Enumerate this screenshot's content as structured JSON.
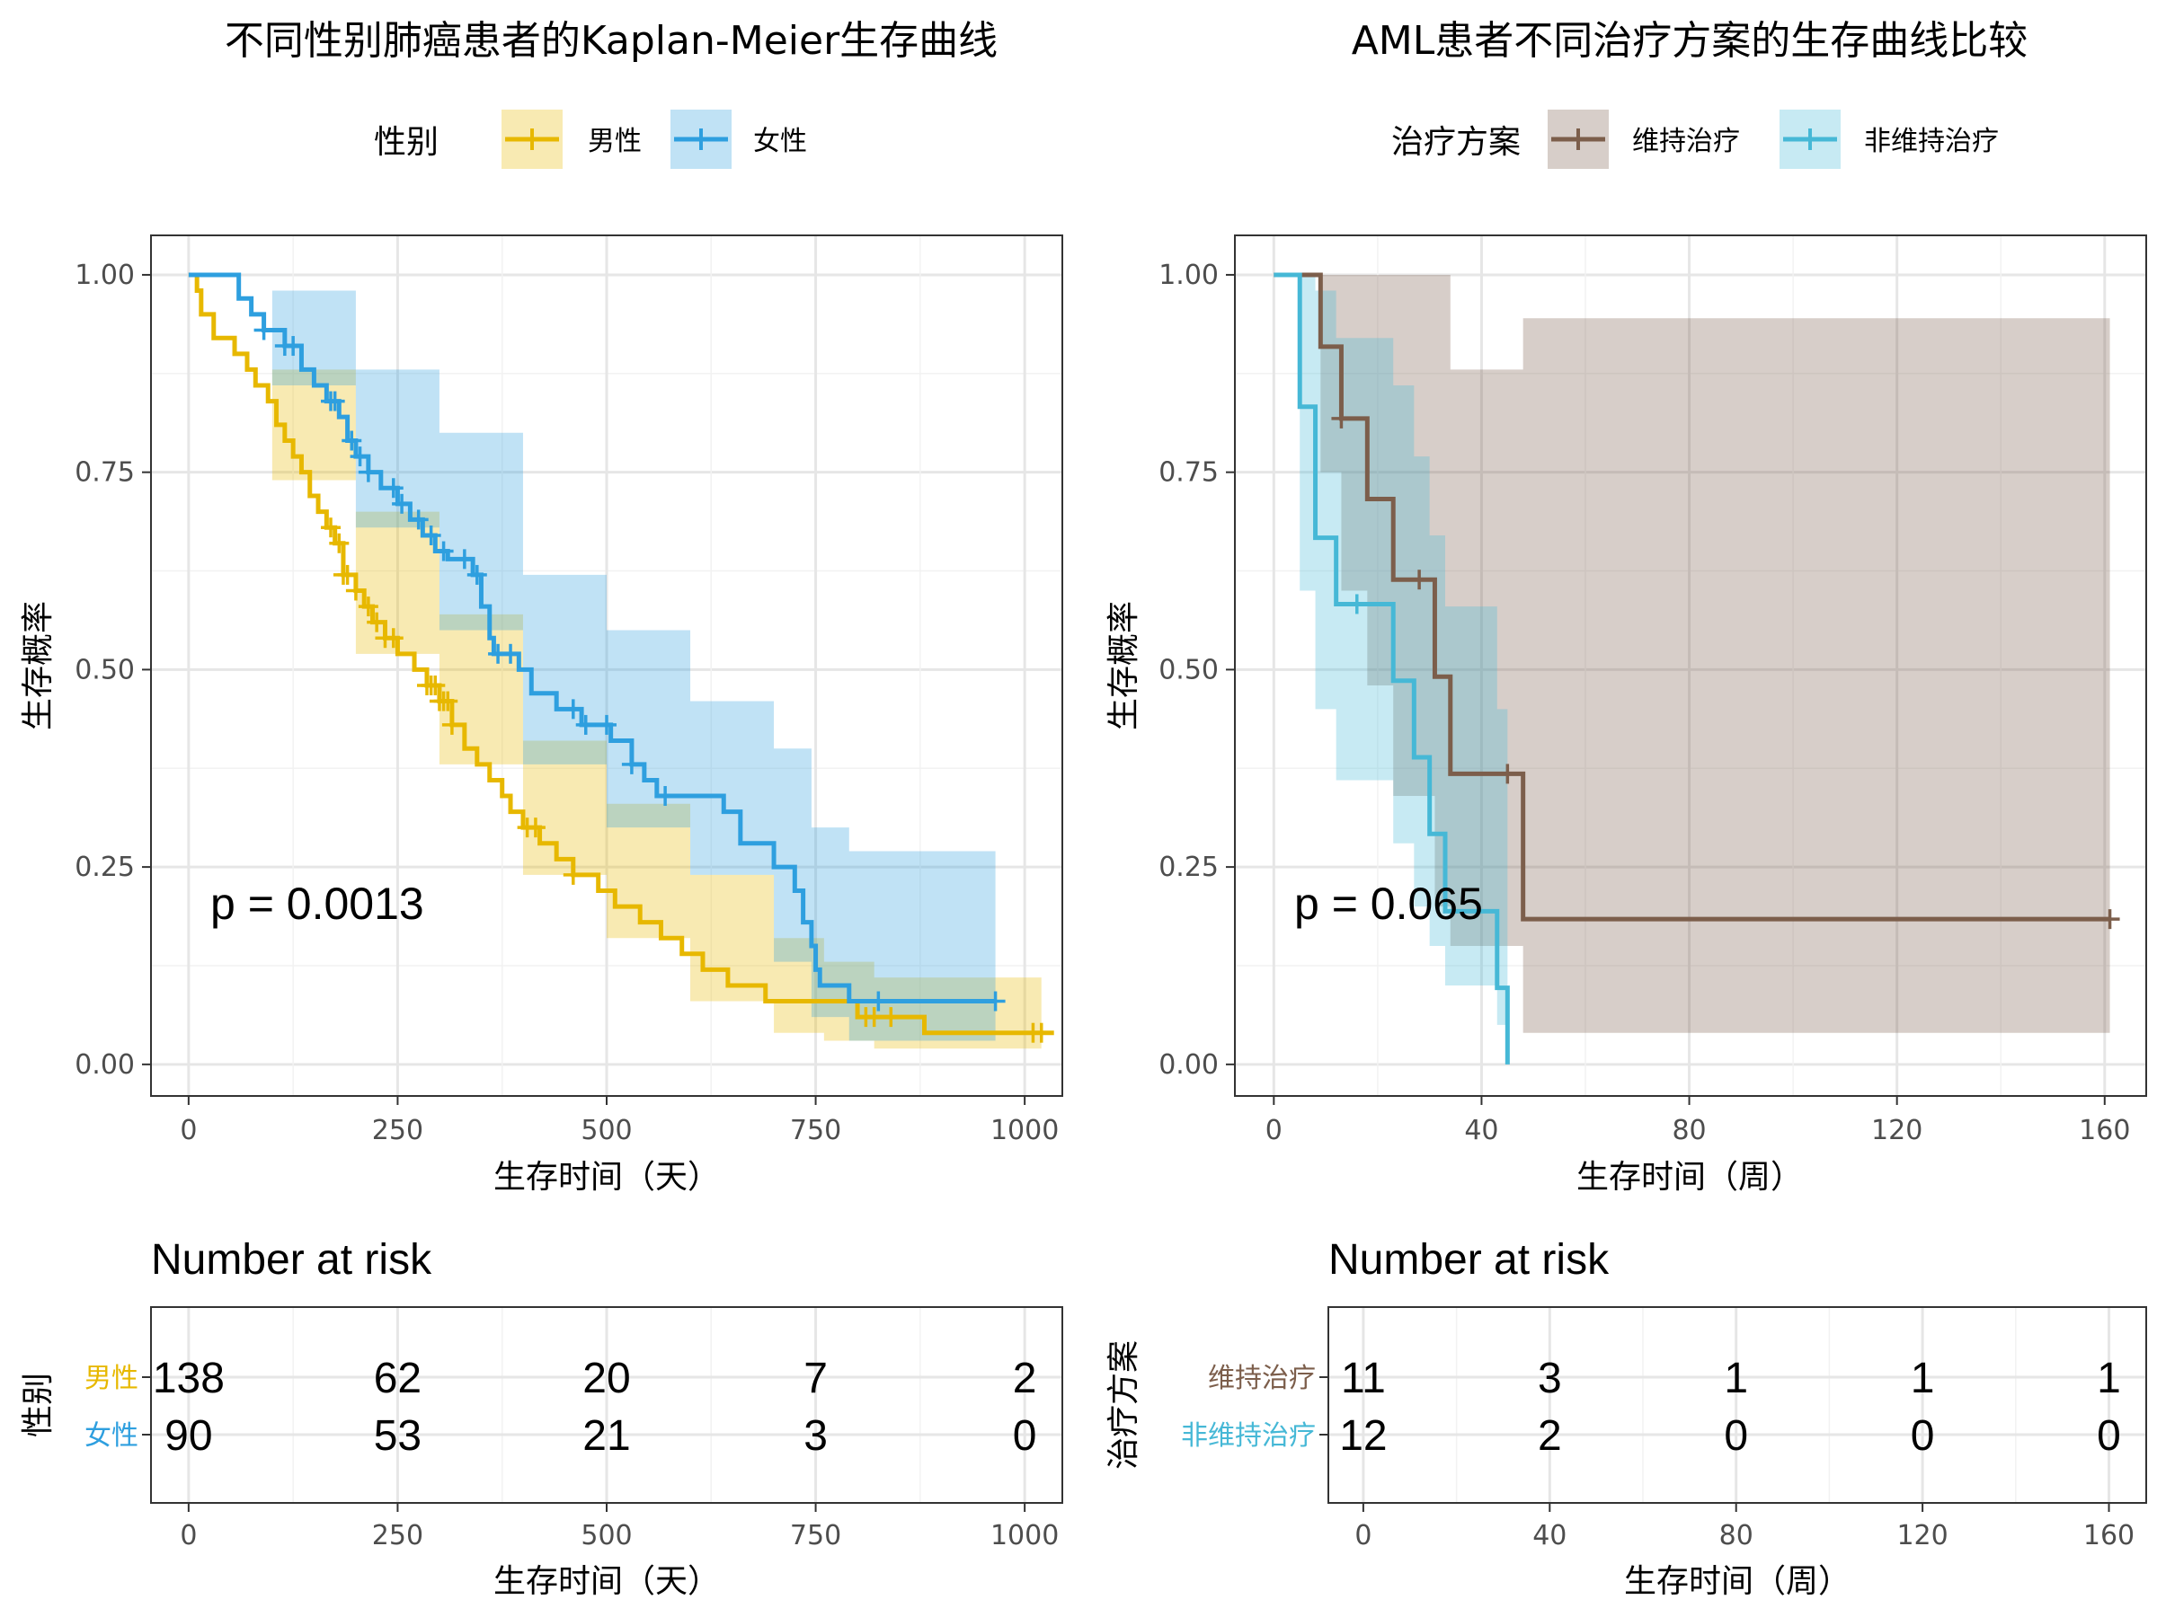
{
  "chart_data": [
    {
      "type": "line",
      "subtype": "kaplan-meier",
      "title": "不同性别肺癌患者的Kaplan-Meier生存曲线",
      "xlabel": "生存时间（天）",
      "ylabel": "生存概率",
      "xlim": [
        -45,
        1045
      ],
      "ylim": [
        -0.04,
        1.05
      ],
      "xticks": [
        0,
        250,
        500,
        750,
        1000
      ],
      "yticks": [
        0.0,
        0.25,
        0.5,
        0.75,
        1.0
      ],
      "ytick_labels": [
        "0.00",
        "0.25",
        "0.50",
        "0.75",
        "1.00"
      ],
      "legend_title": "性别",
      "legend_position": "top",
      "grid": true,
      "annotation": "p = 0.0013",
      "series": [
        {
          "name": "男性",
          "color": "#E7B800",
          "steps": [
            [
              0,
              1.0
            ],
            [
              10,
              0.98
            ],
            [
              15,
              0.95
            ],
            [
              30,
              0.92
            ],
            [
              55,
              0.9
            ],
            [
              70,
              0.88
            ],
            [
              80,
              0.86
            ],
            [
              95,
              0.84
            ],
            [
              105,
              0.81
            ],
            [
              115,
              0.79
            ],
            [
              125,
              0.77
            ],
            [
              135,
              0.75
            ],
            [
              145,
              0.72
            ],
            [
              155,
              0.7
            ],
            [
              165,
              0.68
            ],
            [
              175,
              0.66
            ],
            [
              185,
              0.62
            ],
            [
              200,
              0.6
            ],
            [
              210,
              0.58
            ],
            [
              220,
              0.56
            ],
            [
              235,
              0.54
            ],
            [
              250,
              0.52
            ],
            [
              270,
              0.5
            ],
            [
              285,
              0.48
            ],
            [
              300,
              0.46
            ],
            [
              315,
              0.43
            ],
            [
              330,
              0.4
            ],
            [
              345,
              0.38
            ],
            [
              360,
              0.36
            ],
            [
              375,
              0.34
            ],
            [
              385,
              0.32
            ],
            [
              400,
              0.3
            ],
            [
              420,
              0.28
            ],
            [
              440,
              0.26
            ],
            [
              460,
              0.24
            ],
            [
              490,
              0.22
            ],
            [
              510,
              0.2
            ],
            [
              540,
              0.18
            ],
            [
              565,
              0.16
            ],
            [
              590,
              0.14
            ],
            [
              615,
              0.12
            ],
            [
              645,
              0.1
            ],
            [
              690,
              0.08
            ],
            [
              760,
              0.08
            ],
            [
              800,
              0.06
            ],
            [
              880,
              0.04
            ],
            [
              1035,
              0.04
            ]
          ],
          "upper": [
            [
              0,
              1.0
            ],
            [
              100,
              0.88
            ],
            [
              200,
              0.7
            ],
            [
              300,
              0.57
            ],
            [
              400,
              0.41
            ],
            [
              500,
              0.33
            ],
            [
              600,
              0.24
            ],
            [
              700,
              0.16
            ],
            [
              760,
              0.13
            ],
            [
              820,
              0.11
            ],
            [
              880,
              0.11
            ],
            [
              1020,
              0.12
            ]
          ],
          "lower": [
            [
              0,
              1.0
            ],
            [
              100,
              0.74
            ],
            [
              200,
              0.52
            ],
            [
              300,
              0.38
            ],
            [
              400,
              0.24
            ],
            [
              500,
              0.16
            ],
            [
              600,
              0.08
            ],
            [
              700,
              0.04
            ],
            [
              760,
              0.03
            ],
            [
              820,
              0.02
            ],
            [
              1020,
              0.01
            ]
          ],
          "censor_x": [
            170,
            180,
            185,
            190,
            200,
            215,
            225,
            235,
            245,
            285,
            290,
            295,
            300,
            305,
            310,
            315,
            405,
            415,
            460,
            810,
            820,
            840,
            1010,
            1020
          ]
        },
        {
          "name": "女性",
          "color": "#2E9FDF",
          "steps": [
            [
              0,
              1.0
            ],
            [
              60,
              0.97
            ],
            [
              75,
              0.95
            ],
            [
              90,
              0.93
            ],
            [
              115,
              0.91
            ],
            [
              135,
              0.88
            ],
            [
              150,
              0.86
            ],
            [
              165,
              0.84
            ],
            [
              180,
              0.82
            ],
            [
              190,
              0.79
            ],
            [
              200,
              0.77
            ],
            [
              215,
              0.75
            ],
            [
              230,
              0.73
            ],
            [
              250,
              0.71
            ],
            [
              265,
              0.69
            ],
            [
              280,
              0.67
            ],
            [
              295,
              0.65
            ],
            [
              310,
              0.64
            ],
            [
              340,
              0.62
            ],
            [
              350,
              0.58
            ],
            [
              360,
              0.54
            ],
            [
              365,
              0.52
            ],
            [
              395,
              0.5
            ],
            [
              410,
              0.47
            ],
            [
              440,
              0.45
            ],
            [
              470,
              0.43
            ],
            [
              505,
              0.41
            ],
            [
              530,
              0.38
            ],
            [
              545,
              0.36
            ],
            [
              560,
              0.34
            ],
            [
              640,
              0.32
            ],
            [
              660,
              0.28
            ],
            [
              700,
              0.25
            ],
            [
              725,
              0.22
            ],
            [
              735,
              0.18
            ],
            [
              745,
              0.15
            ],
            [
              750,
              0.12
            ],
            [
              755,
              0.1
            ],
            [
              790,
              0.08
            ],
            [
              965,
              0.08
            ]
          ],
          "upper": [
            [
              0,
              1.0
            ],
            [
              100,
              0.98
            ],
            [
              200,
              0.88
            ],
            [
              300,
              0.8
            ],
            [
              400,
              0.62
            ],
            [
              500,
              0.55
            ],
            [
              600,
              0.46
            ],
            [
              700,
              0.4
            ],
            [
              745,
              0.3
            ],
            [
              790,
              0.27
            ],
            [
              965,
              0.27
            ]
          ],
          "lower": [
            [
              0,
              1.0
            ],
            [
              100,
              0.86
            ],
            [
              200,
              0.68
            ],
            [
              300,
              0.55
            ],
            [
              400,
              0.38
            ],
            [
              500,
              0.3
            ],
            [
              600,
              0.24
            ],
            [
              700,
              0.13
            ],
            [
              745,
              0.06
            ],
            [
              790,
              0.03
            ],
            [
              965,
              0.03
            ]
          ],
          "censor_x": [
            90,
            115,
            125,
            170,
            175,
            195,
            205,
            215,
            245,
            255,
            275,
            290,
            305,
            330,
            345,
            370,
            385,
            460,
            475,
            500,
            530,
            570,
            825,
            965
          ]
        }
      ],
      "risk_table": {
        "title": "Number at risk",
        "ylabel": "性别",
        "xlabel": "生存时间（天）",
        "times": [
          0,
          250,
          500,
          750,
          1000
        ],
        "rows": [
          {
            "label": "男性",
            "color": "#E7B800",
            "counts": [
              "138",
              "62",
              "20",
              "7",
              "2"
            ]
          },
          {
            "label": "女性",
            "color": "#2E9FDF",
            "counts": [
              "90",
              "53",
              "21",
              "3",
              "0"
            ]
          }
        ]
      }
    },
    {
      "type": "line",
      "subtype": "kaplan-meier",
      "title": "AML患者不同治疗方案的生存曲线比较",
      "xlabel": "生存时间（周）",
      "ylabel": "生存概率",
      "xlim": [
        -7.5,
        168
      ],
      "ylim": [
        -0.04,
        1.05
      ],
      "xticks": [
        0,
        40,
        80,
        120,
        160
      ],
      "yticks": [
        0.0,
        0.25,
        0.5,
        0.75,
        1.0
      ],
      "ytick_labels": [
        "0.00",
        "0.25",
        "0.50",
        "0.75",
        "1.00"
      ],
      "legend_title": "治疗方案",
      "legend_position": "top",
      "grid": true,
      "annotation": "p = 0.065",
      "series": [
        {
          "name": "维持治疗",
          "color": "#7C5E4B",
          "steps": [
            [
              0,
              1.0
            ],
            [
              9,
              0.909
            ],
            [
              13,
              0.818
            ],
            [
              18,
              0.716
            ],
            [
              23,
              0.614
            ],
            [
              31,
              0.491
            ],
            [
              34,
              0.368
            ],
            [
              48,
              0.184
            ],
            [
              161,
              0.184
            ]
          ],
          "upper": [
            [
              0,
              1.0
            ],
            [
              13,
              1.0
            ],
            [
              31,
              1.0
            ],
            [
              34,
              0.88
            ],
            [
              48,
              0.945
            ],
            [
              161,
              0.945
            ]
          ],
          "lower": [
            [
              0,
              1.0
            ],
            [
              9,
              0.75
            ],
            [
              13,
              0.6
            ],
            [
              18,
              0.48
            ],
            [
              23,
              0.34
            ],
            [
              31,
              0.2
            ],
            [
              34,
              0.15
            ],
            [
              48,
              0.04
            ],
            [
              161,
              0.04
            ]
          ],
          "censor_x": [
            13,
            28,
            45,
            161
          ]
        },
        {
          "name": "非维持治疗",
          "color": "#46B8D6",
          "steps": [
            [
              0,
              1.0
            ],
            [
              5,
              0.833
            ],
            [
              8,
              0.667
            ],
            [
              12,
              0.583
            ],
            [
              23,
              0.486
            ],
            [
              27,
              0.389
            ],
            [
              30,
              0.292
            ],
            [
              33,
              0.194
            ],
            [
              43,
              0.097
            ],
            [
              45,
              0.0
            ]
          ],
          "upper": [
            [
              0,
              1.0
            ],
            [
              5,
              1.0
            ],
            [
              8,
              0.98
            ],
            [
              12,
              0.92
            ],
            [
              23,
              0.86
            ],
            [
              27,
              0.77
            ],
            [
              30,
              0.67
            ],
            [
              33,
              0.58
            ],
            [
              43,
              0.45
            ],
            [
              45,
              0.45
            ]
          ],
          "lower": [
            [
              0,
              1.0
            ],
            [
              5,
              0.6
            ],
            [
              8,
              0.45
            ],
            [
              12,
              0.36
            ],
            [
              23,
              0.28
            ],
            [
              27,
              0.2
            ],
            [
              30,
              0.15
            ],
            [
              33,
              0.1
            ],
            [
              43,
              0.05
            ],
            [
              45,
              0.0
            ]
          ],
          "censor_x": [
            16
          ]
        }
      ],
      "risk_table": {
        "title": "Number at risk",
        "ylabel": "治疗方案",
        "xlabel": "生存时间（周）",
        "times": [
          0,
          40,
          80,
          120,
          160
        ],
        "rows": [
          {
            "label": "维持治疗",
            "color": "#7C5E4B",
            "counts": [
              "11",
              "3",
              "1",
              "1",
              "1"
            ]
          },
          {
            "label": "非维持治疗",
            "color": "#46B8D6",
            "counts": [
              "12",
              "2",
              "0",
              "0",
              "0"
            ]
          }
        ]
      }
    }
  ]
}
